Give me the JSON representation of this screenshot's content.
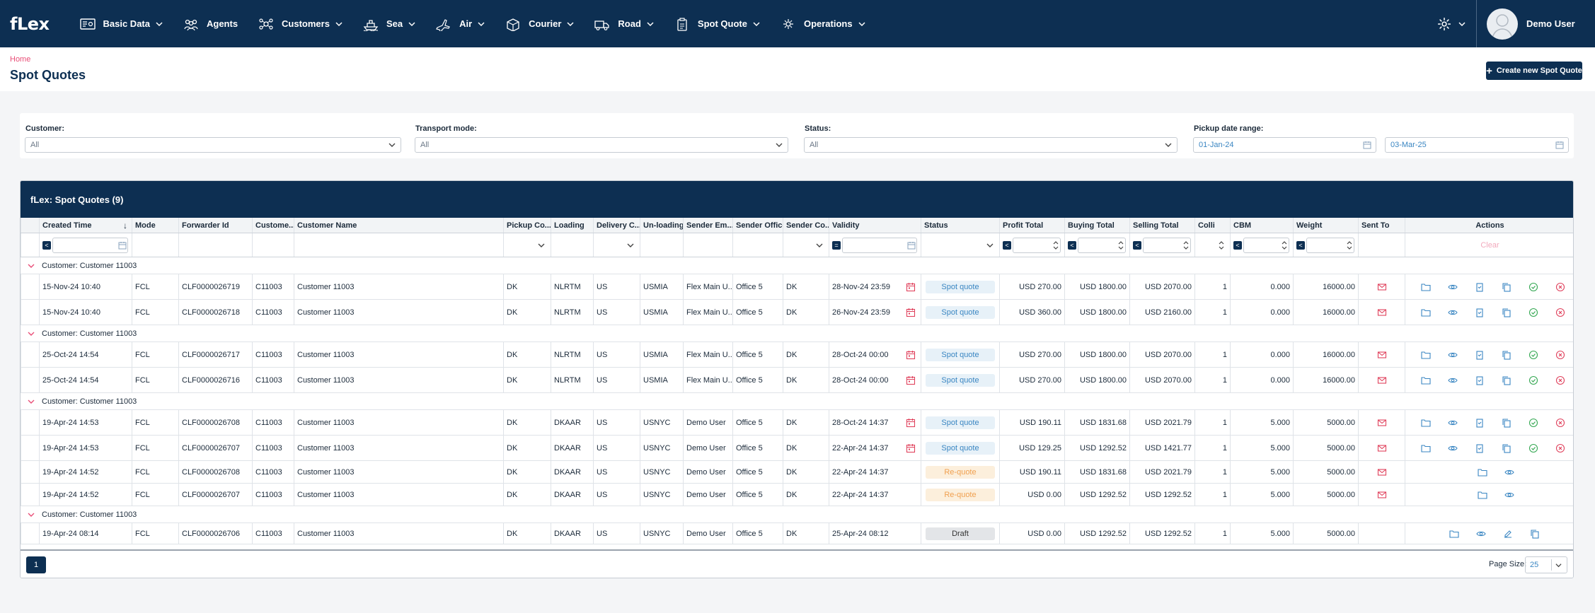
{
  "app": {
    "logo": "fLex"
  },
  "nav": {
    "items": [
      {
        "label": "Basic Data",
        "icon": "database-icon",
        "has_menu": true
      },
      {
        "label": "Agents",
        "icon": "agents-icon",
        "has_menu": false
      },
      {
        "label": "Customers",
        "icon": "customers-icon",
        "has_menu": true
      },
      {
        "label": "Sea",
        "icon": "ship-icon",
        "has_menu": true
      },
      {
        "label": "Air",
        "icon": "plane-icon",
        "has_menu": true
      },
      {
        "label": "Courier",
        "icon": "box-icon",
        "has_menu": true
      },
      {
        "label": "Road",
        "icon": "truck-icon",
        "has_menu": true
      },
      {
        "label": "Spot Quote",
        "icon": "clipboard-icon",
        "has_menu": true
      },
      {
        "label": "Operations",
        "icon": "operations-icon",
        "has_menu": true
      }
    ],
    "user_name": "Demo User"
  },
  "page": {
    "breadcrumb": "Home",
    "title": "Spot Quotes",
    "create_button": "Create new Spot Quote"
  },
  "filters": {
    "customer_label": "Customer:",
    "customer_value": "All",
    "transport_label": "Transport mode:",
    "transport_value": "All",
    "status_label": "Status:",
    "status_value": "All",
    "pickup_label": "Pickup date range:",
    "pickup_from": "01-Jan-24",
    "pickup_to": "03-Mar-25"
  },
  "grid": {
    "title": "fLex: Spot Quotes (9)",
    "columns": [
      "Created Time",
      "Mode",
      "Forwarder Id",
      "Custome...",
      "Customer Name",
      "Pickup Co...",
      "Loading",
      "Delivery C...",
      "Un-loading",
      "Sender Em...",
      "Sender Office",
      "Sender Co...",
      "Validity",
      "Status",
      "Profit Total",
      "Buying Total",
      "Selling Total",
      "Colli",
      "CBM",
      "Weight",
      "Sent To",
      "Actions"
    ],
    "clear_label": "Clear",
    "groups": [
      {
        "label": "Customer: Customer 11003",
        "rows": [
          {
            "created": "15-Nov-24 10:40",
            "mode": "FCL",
            "fwd": "CLF0000026719",
            "cust": "C11003",
            "name": "Customer 11003",
            "pickup": "DK",
            "loading": "NLRTM",
            "delivery": "US",
            "unloading": "USMIA",
            "sender_email": "Flex Main U...",
            "office": "Office 5",
            "sender_co": "DK",
            "validity": "28-Nov-24 23:59",
            "status": "Spot quote",
            "profit": "USD 270.00",
            "buying": "USD 1800.00",
            "selling": "USD 2070.00",
            "colli": "1",
            "cbm": "0.000",
            "weight": "16000.00"
          },
          {
            "created": "15-Nov-24 10:40",
            "mode": "FCL",
            "fwd": "CLF0000026718",
            "cust": "C11003",
            "name": "Customer 11003",
            "pickup": "DK",
            "loading": "NLRTM",
            "delivery": "US",
            "unloading": "USMIA",
            "sender_email": "Flex Main U...",
            "office": "Office 5",
            "sender_co": "DK",
            "validity": "26-Nov-24 23:59",
            "status": "Spot quote",
            "profit": "USD 360.00",
            "buying": "USD 1800.00",
            "selling": "USD 2160.00",
            "colli": "1",
            "cbm": "0.000",
            "weight": "16000.00"
          }
        ]
      },
      {
        "label": "Customer: Customer 11003",
        "rows": [
          {
            "created": "25-Oct-24 14:54",
            "mode": "FCL",
            "fwd": "CLF0000026717",
            "cust": "C11003",
            "name": "Customer 11003",
            "pickup": "DK",
            "loading": "NLRTM",
            "delivery": "US",
            "unloading": "USMIA",
            "sender_email": "Flex Main U...",
            "office": "Office 5",
            "sender_co": "DK",
            "validity": "28-Oct-24 00:00",
            "status": "Spot quote",
            "profit": "USD 270.00",
            "buying": "USD 1800.00",
            "selling": "USD 2070.00",
            "colli": "1",
            "cbm": "0.000",
            "weight": "16000.00"
          },
          {
            "created": "25-Oct-24 14:54",
            "mode": "FCL",
            "fwd": "CLF0000026716",
            "cust": "C11003",
            "name": "Customer 11003",
            "pickup": "DK",
            "loading": "NLRTM",
            "delivery": "US",
            "unloading": "USMIA",
            "sender_email": "Flex Main U...",
            "office": "Office 5",
            "sender_co": "DK",
            "validity": "28-Oct-24 00:00",
            "status": "Spot quote",
            "profit": "USD 270.00",
            "buying": "USD 1800.00",
            "selling": "USD 2070.00",
            "colli": "1",
            "cbm": "0.000",
            "weight": "16000.00"
          }
        ]
      },
      {
        "label": "Customer: Customer 11003",
        "rows": [
          {
            "created": "19-Apr-24 14:53",
            "mode": "FCL",
            "fwd": "CLF0000026708",
            "cust": "C11003",
            "name": "Customer 11003",
            "pickup": "DK",
            "loading": "DKAAR",
            "delivery": "US",
            "unloading": "USNYC",
            "sender_email": "Demo User",
            "office": "Office 5",
            "sender_co": "DK",
            "validity": "28-Oct-24 14:37",
            "status": "Spot quote",
            "profit": "USD 190.11",
            "buying": "USD 1831.68",
            "selling": "USD 2021.79",
            "colli": "1",
            "cbm": "5.000",
            "weight": "5000.00"
          },
          {
            "created": "19-Apr-24 14:53",
            "mode": "FCL",
            "fwd": "CLF0000026707",
            "cust": "C11003",
            "name": "Customer 11003",
            "pickup": "DK",
            "loading": "DKAAR",
            "delivery": "US",
            "unloading": "USNYC",
            "sender_email": "Demo User",
            "office": "Office 5",
            "sender_co": "DK",
            "validity": "22-Apr-24 14:37",
            "status": "Spot quote",
            "profit": "USD 129.25",
            "buying": "USD 1292.52",
            "selling": "USD 1421.77",
            "colli": "1",
            "cbm": "5.000",
            "weight": "5000.00"
          },
          {
            "created": "19-Apr-24 14:52",
            "mode": "FCL",
            "fwd": "CLF0000026708",
            "cust": "C11003",
            "name": "Customer 11003",
            "pickup": "DK",
            "loading": "DKAAR",
            "delivery": "US",
            "unloading": "USNYC",
            "sender_email": "Demo User",
            "office": "Office 5",
            "sender_co": "DK",
            "validity": "22-Apr-24 14:37",
            "status": "Re-quote",
            "profit": "USD 190.11",
            "buying": "USD 1831.68",
            "selling": "USD 2021.79",
            "colli": "1",
            "cbm": "5.000",
            "weight": "5000.00"
          },
          {
            "created": "19-Apr-24 14:52",
            "mode": "FCL",
            "fwd": "CLF0000026707",
            "cust": "C11003",
            "name": "Customer 11003",
            "pickup": "DK",
            "loading": "DKAAR",
            "delivery": "US",
            "unloading": "USNYC",
            "sender_email": "Demo User",
            "office": "Office 5",
            "sender_co": "DK",
            "validity": "22-Apr-24 14:37",
            "status": "Re-quote",
            "profit": "USD 0.00",
            "buying": "USD 1292.52",
            "selling": "USD 1292.52",
            "colli": "1",
            "cbm": "5.000",
            "weight": "5000.00"
          }
        ]
      },
      {
        "label": "Customer: Customer 11003",
        "rows": [
          {
            "created": "19-Apr-24 08:14",
            "mode": "FCL",
            "fwd": "CLF0000026706",
            "cust": "C11003",
            "name": "Customer 11003",
            "pickup": "DK",
            "loading": "DKAAR",
            "delivery": "US",
            "unloading": "USNYC",
            "sender_email": "Demo User",
            "office": "Office 5",
            "sender_co": "DK",
            "validity": "25-Apr-24 08:12",
            "status": "Draft",
            "profit": "USD 0.00",
            "buying": "USD 1292.52",
            "selling": "USD 1292.52",
            "colli": "1",
            "cbm": "5.000",
            "weight": "5000.00"
          }
        ]
      }
    ],
    "page_number": "1",
    "page_size_label": "Page Size:",
    "page_size": "25"
  },
  "colors": {
    "navy": "#0d2f52",
    "accent_pink": "#e94e77",
    "spot_blue": "#3a86c2",
    "requote_orange": "#f0a050"
  }
}
